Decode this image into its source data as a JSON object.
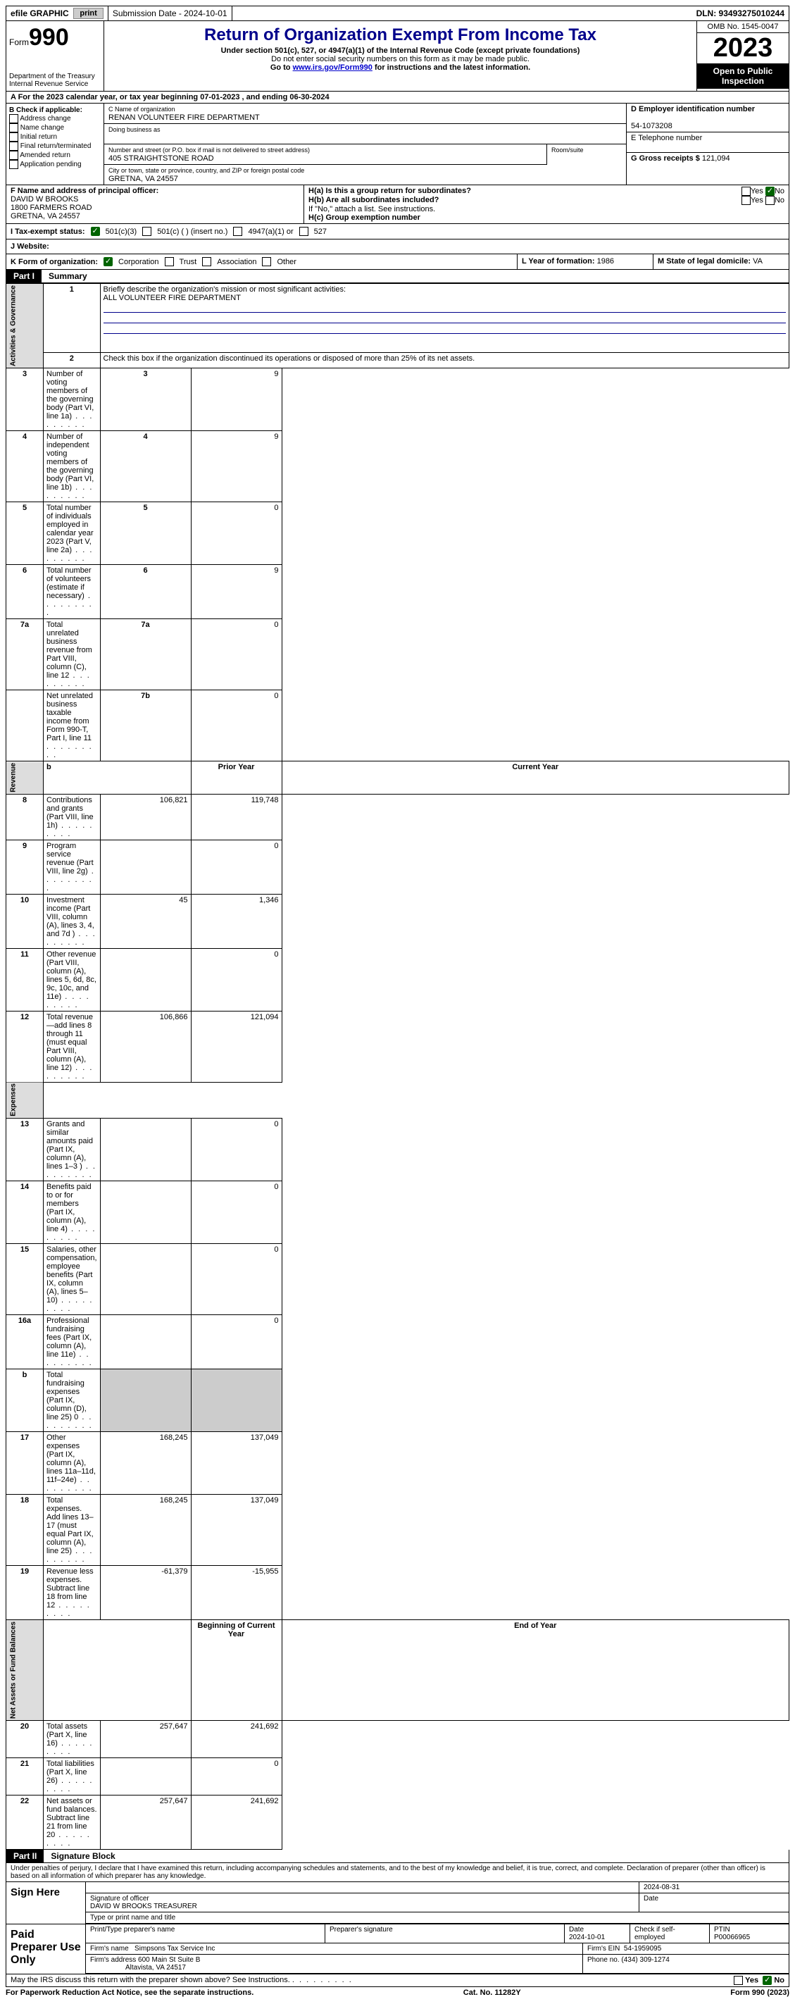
{
  "topbar": {
    "efile": "efile GRAPHIC",
    "print_btn": "print",
    "submission": "Submission Date - 2024-10-01",
    "dln": "DLN: 93493275010244"
  },
  "header": {
    "form_label": "Form",
    "form_number": "990",
    "title": "Return of Organization Exempt From Income Tax",
    "subtitle": "Under section 501(c), 527, or 4947(a)(1) of the Internal Revenue Code (except private foundations)",
    "warn": "Do not enter social security numbers on this form as it may be made public.",
    "goto": "Go to ",
    "goto_link": "www.irs.gov/Form990",
    "goto_suffix": " for instructions and the latest information.",
    "dept": "Department of the Treasury Internal Revenue Service",
    "omb": "OMB No. 1545-0047",
    "year": "2023",
    "open": "Open to Public Inspection"
  },
  "line_a": "A For the 2023 calendar year, or tax year beginning 07-01-2023   , and ending 06-30-2024",
  "box_b": {
    "header": "B Check if applicable:",
    "items": [
      "Address change",
      "Name change",
      "Initial return",
      "Final return/terminated",
      "Amended return",
      "Application pending"
    ]
  },
  "box_c": {
    "name_lbl": "C Name of organization",
    "name": "RENAN VOLUNTEER FIRE DEPARTMENT",
    "dba_lbl": "Doing business as",
    "addr_lbl": "Number and street (or P.O. box if mail is not delivered to street address)",
    "addr": "405 STRAIGHTSTONE ROAD",
    "room_lbl": "Room/suite",
    "city_lbl": "City or town, state or province, country, and ZIP or foreign postal code",
    "city": "GRETNA, VA  24557"
  },
  "box_d": {
    "ein_lbl": "D Employer identification number",
    "ein": "54-1073208",
    "tel_lbl": "E Telephone number",
    "gross_lbl": "G Gross receipts $",
    "gross": "121,094"
  },
  "box_f": {
    "lbl": "F  Name and address of principal officer:",
    "name": "DAVID W BROOKS",
    "addr1": "1800 FARMERS ROAD",
    "addr2": "GRETNA, VA  24557"
  },
  "box_h": {
    "a": "H(a)  Is this a group return for subordinates?",
    "b": "H(b)  Are all subordinates included?",
    "no_note": "If \"No,\" attach a list. See instructions.",
    "c": "H(c)  Group exemption number",
    "yes": "Yes",
    "no": "No"
  },
  "line_i": {
    "lbl": "I   Tax-exempt status:",
    "opts": [
      "501(c)(3)",
      "501(c) (  ) (insert no.)",
      "4947(a)(1) or",
      "527"
    ]
  },
  "line_j": {
    "lbl": "J   Website:"
  },
  "line_k": {
    "lbl": "K Form of organization:",
    "opts": [
      "Corporation",
      "Trust",
      "Association",
      "Other"
    ]
  },
  "line_l": {
    "lbl": "L Year of formation:",
    "val": "1986"
  },
  "line_m": {
    "lbl": "M State of legal domicile:",
    "val": "VA"
  },
  "part1": {
    "label": "Part I",
    "title": "Summary"
  },
  "summary": {
    "q1": "Briefly describe the organization's mission or most significant activities:",
    "q1_ans": "ALL VOLUNTEER FIRE DEPARTMENT",
    "q2": "Check this box        if the organization discontinued its operations or disposed of more than 25% of its net assets.",
    "rows_gov": [
      {
        "n": "3",
        "t": "Number of voting members of the governing body (Part VI, line 1a)",
        "box": "3",
        "v": "9"
      },
      {
        "n": "4",
        "t": "Number of independent voting members of the governing body (Part VI, line 1b)",
        "box": "4",
        "v": "9"
      },
      {
        "n": "5",
        "t": "Total number of individuals employed in calendar year 2023 (Part V, line 2a)",
        "box": "5",
        "v": "0"
      },
      {
        "n": "6",
        "t": "Total number of volunteers (estimate if necessary)",
        "box": "6",
        "v": "9"
      },
      {
        "n": "7a",
        "t": "Total unrelated business revenue from Part VIII, column (C), line 12",
        "box": "7a",
        "v": "0"
      },
      {
        "n": "",
        "t": "Net unrelated business taxable income from Form 990-T, Part I, line 11",
        "box": "7b",
        "v": "0"
      }
    ],
    "hdr_b": "b",
    "hdr_prior": "Prior Year",
    "hdr_current": "Current Year",
    "rows_rev": [
      {
        "n": "8",
        "t": "Contributions and grants (Part VIII, line 1h)",
        "p": "106,821",
        "c": "119,748"
      },
      {
        "n": "9",
        "t": "Program service revenue (Part VIII, line 2g)",
        "p": "",
        "c": "0"
      },
      {
        "n": "10",
        "t": "Investment income (Part VIII, column (A), lines 3, 4, and 7d )",
        "p": "45",
        "c": "1,346"
      },
      {
        "n": "11",
        "t": "Other revenue (Part VIII, column (A), lines 5, 6d, 8c, 9c, 10c, and 11e)",
        "p": "",
        "c": "0"
      },
      {
        "n": "12",
        "t": "Total revenue—add lines 8 through 11 (must equal Part VIII, column (A), line 12)",
        "p": "106,866",
        "c": "121,094"
      }
    ],
    "rows_exp": [
      {
        "n": "13",
        "t": "Grants and similar amounts paid (Part IX, column (A), lines 1–3 )",
        "p": "",
        "c": "0"
      },
      {
        "n": "14",
        "t": "Benefits paid to or for members (Part IX, column (A), line 4)",
        "p": "",
        "c": "0"
      },
      {
        "n": "15",
        "t": "Salaries, other compensation, employee benefits (Part IX, column (A), lines 5–10)",
        "p": "",
        "c": "0"
      },
      {
        "n": "16a",
        "t": "Professional fundraising fees (Part IX, column (A), line 11e)",
        "p": "",
        "c": "0"
      },
      {
        "n": "b",
        "t": "Total fundraising expenses (Part IX, column (D), line 25) 0",
        "p": "SHADE",
        "c": "SHADE"
      },
      {
        "n": "17",
        "t": "Other expenses (Part IX, column (A), lines 11a–11d, 11f–24e)",
        "p": "168,245",
        "c": "137,049"
      },
      {
        "n": "18",
        "t": "Total expenses. Add lines 13–17 (must equal Part IX, column (A), line 25)",
        "p": "168,245",
        "c": "137,049"
      },
      {
        "n": "19",
        "t": "Revenue less expenses. Subtract line 18 from line 12",
        "p": "-61,379",
        "c": "-15,955"
      }
    ],
    "hdr_begin": "Beginning of Current Year",
    "hdr_end": "End of Year",
    "rows_net": [
      {
        "n": "20",
        "t": "Total assets (Part X, line 16)",
        "p": "257,647",
        "c": "241,692"
      },
      {
        "n": "21",
        "t": "Total liabilities (Part X, line 26)",
        "p": "",
        "c": "0"
      },
      {
        "n": "22",
        "t": "Net assets or fund balances. Subtract line 21 from line 20",
        "p": "257,647",
        "c": "241,692"
      }
    ],
    "vtabs": {
      "gov": "Activities & Governance",
      "rev": "Revenue",
      "exp": "Expenses",
      "net": "Net Assets or Fund Balances"
    }
  },
  "part2": {
    "label": "Part II",
    "title": "Signature Block"
  },
  "penalties": "Under penalties of perjury, I declare that I have examined this return, including accompanying schedules and statements, and to the best of my knowledge and belief, it is true, correct, and complete. Declaration of preparer (other than officer) is based on all information of which preparer has any knowledge.",
  "sign": {
    "here": "Sign Here",
    "sig_lbl": "Signature of officer",
    "sig_name": "DAVID W BROOKS  TREASURER",
    "type_lbl": "Type or print name and title",
    "date_lbl": "Date",
    "date": "2024-08-31"
  },
  "preparer": {
    "title": "Paid Preparer Use Only",
    "print_lbl": "Print/Type preparer's name",
    "sig_lbl": "Preparer's signature",
    "date_lbl": "Date",
    "date": "2024-10-01",
    "check_lbl": "Check        if self-employed",
    "ptin_lbl": "PTIN",
    "ptin": "P00066965",
    "firm_name_lbl": "Firm's name",
    "firm_name": "Simpsons Tax Service Inc",
    "firm_ein_lbl": "Firm's EIN",
    "firm_ein": "54-1959095",
    "firm_addr_lbl": "Firm's address",
    "firm_addr1": "600 Main St Suite B",
    "firm_addr2": "Altavista, VA  24517",
    "phone_lbl": "Phone no.",
    "phone": "(434) 309-1274"
  },
  "discuss": "May the IRS discuss this return with the preparer shown above? See Instructions.",
  "footer": {
    "paperwork": "For Paperwork Reduction Act Notice, see the separate instructions.",
    "cat": "Cat. No. 11282Y",
    "form": "Form 990 (2023)"
  }
}
